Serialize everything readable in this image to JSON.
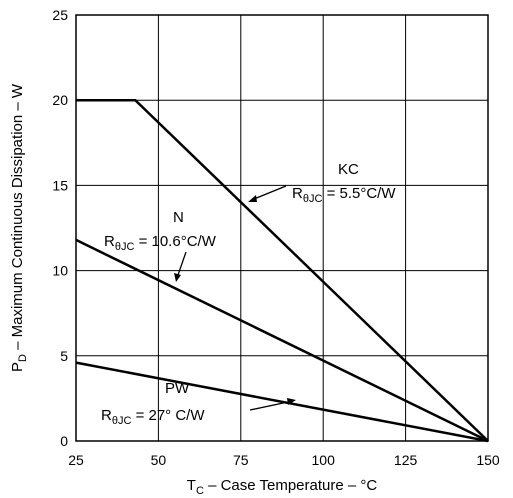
{
  "chart_data": {
    "type": "line",
    "xlabel": {
      "main": "T",
      "sub": "C",
      "rest": " – Case Temperature – °C"
    },
    "ylabel": {
      "main": "P",
      "sub": "D",
      "rest": " – Maximum Continuous Dissipation – W"
    },
    "xlim": [
      25,
      150
    ],
    "ylim": [
      0,
      25
    ],
    "xticks": [
      25,
      50,
      75,
      100,
      125,
      150
    ],
    "yticks": [
      0,
      5,
      10,
      15,
      20,
      25
    ],
    "grid": true,
    "series": [
      {
        "name": "KC",
        "x": [
          25,
          43,
          150
        ],
        "y": [
          20,
          20,
          0
        ]
      },
      {
        "name": "N",
        "x": [
          25,
          150
        ],
        "y": [
          11.8,
          0
        ]
      },
      {
        "name": "PW",
        "x": [
          25,
          150
        ],
        "y": [
          4.6,
          0
        ]
      }
    ],
    "annotations": [
      {
        "series": "KC",
        "name": "KC",
        "r_sym": "R",
        "r_sub": "θJC",
        "r_val": " = 5.5°C/W"
      },
      {
        "series": "N",
        "name": "N",
        "r_sym": "R",
        "r_sub": "θJC",
        "r_val": " = 10.6°C/W"
      },
      {
        "series": "PW",
        "name": "PW",
        "r_sym": "R",
        "r_sub": "θJC",
        "r_val": " = 27° C/W"
      }
    ]
  }
}
